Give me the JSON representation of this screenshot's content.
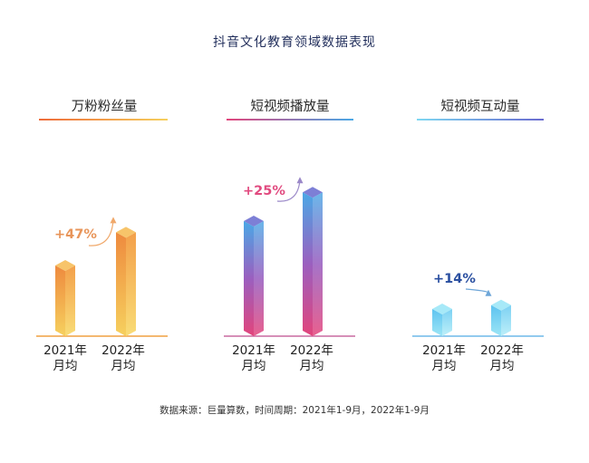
{
  "title": "抖音文化教育领域数据表现",
  "source_note": "数据来源：巨量算数，时间周期：2021年1-9月，2022年1-9月",
  "colors": {
    "panel1": [
      "#f4b44e",
      "#ee8a3e",
      "#f6d05e"
    ],
    "panel2": [
      "#e2457c",
      "#9b5fbf",
      "#4aa8e6"
    ],
    "panel3": [
      "#7fd8f2",
      "#4aa8e6",
      "#2a4fa0"
    ]
  },
  "chart_data": [
    {
      "type": "bar",
      "title": "万粉粉丝量",
      "categories": [
        "2021年\n月均",
        "2022年\n月均"
      ],
      "values": [
        100,
        147
      ],
      "growth_label": "+47%"
    },
    {
      "type": "bar",
      "title": "短视频播放量",
      "categories": [
        "2021年\n月均",
        "2022年\n月均"
      ],
      "values": [
        100,
        125
      ],
      "growth_label": "+25%"
    },
    {
      "type": "bar",
      "title": "短视频互动量",
      "categories": [
        "2021年\n月均",
        "2022年\n月均"
      ],
      "values": [
        100,
        114
      ],
      "growth_label": "+14%"
    }
  ]
}
